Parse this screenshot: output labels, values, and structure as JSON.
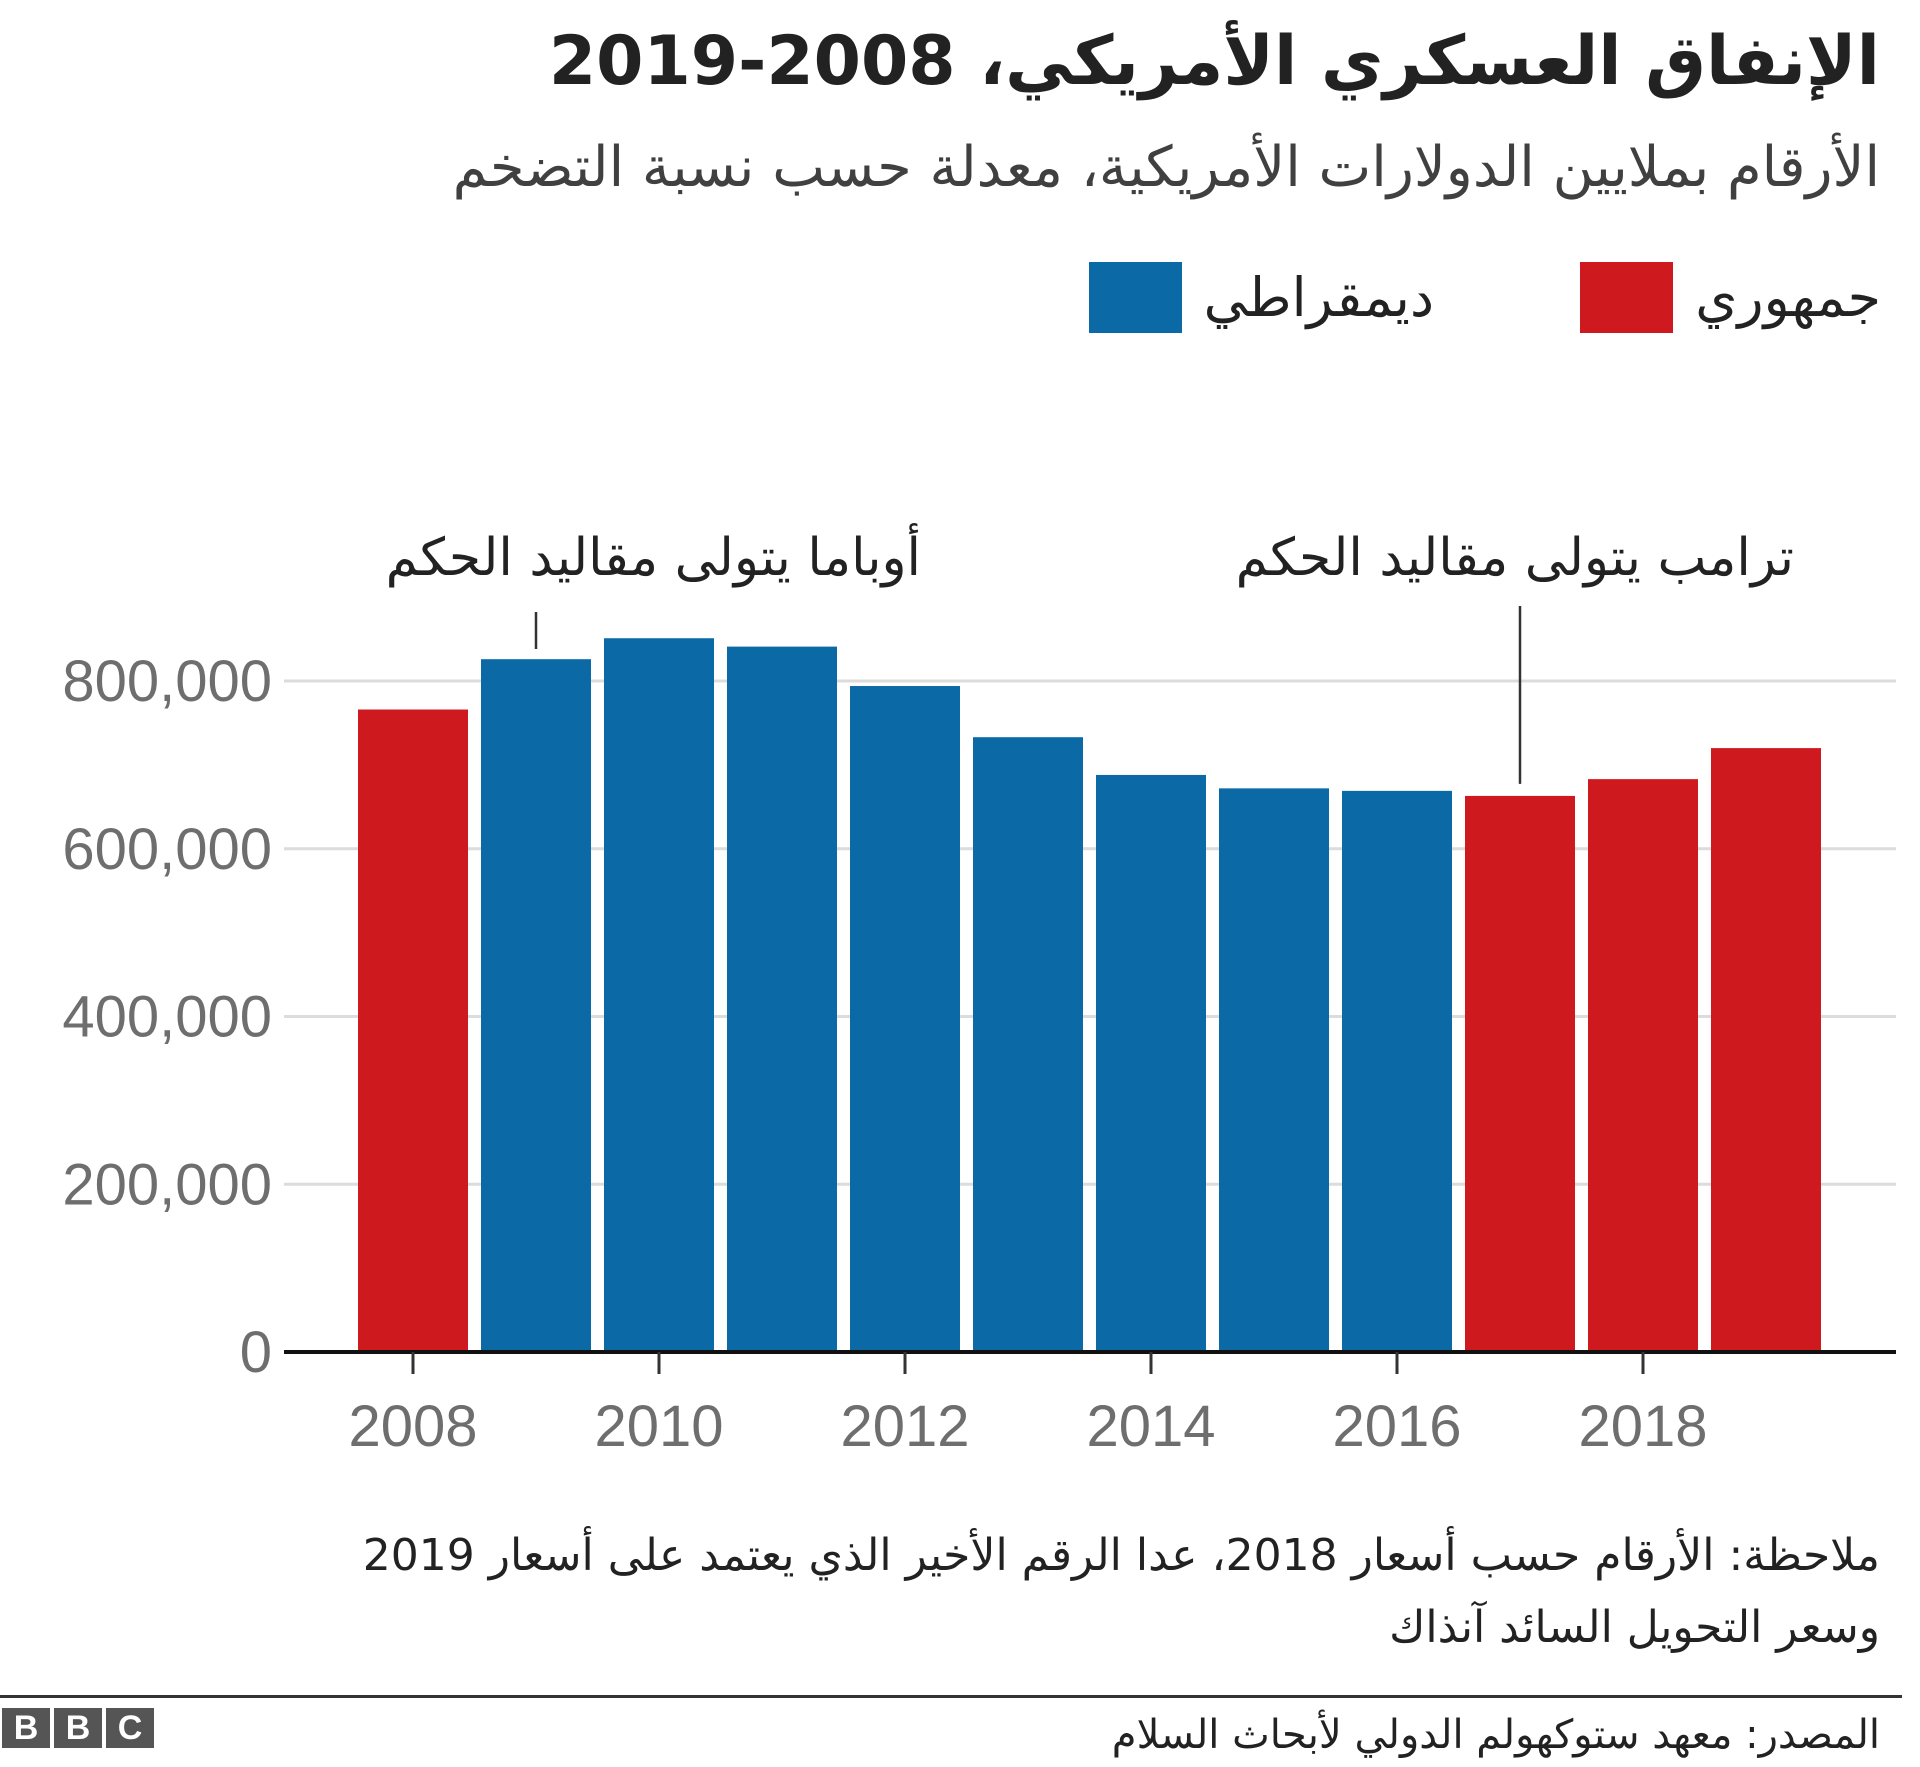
{
  "title": "الإنفاق العسكري الأمريكي، 2008-2019",
  "subtitle": "الأرقام بملايين الدولارات الأمريكية، معدلة حسب نسبة التضخم",
  "legend": [
    {
      "label": "جمهوري",
      "color": "#ce1a1e"
    },
    {
      "label": "ديمقراطي",
      "color": "#0b6aa6"
    }
  ],
  "note": "ملاحظة: الأرقام حسب أسعار 2018، عدا الرقم الأخير الذي يعتمد على أسعار 2019 وسعر التحويل السائد آنذاك",
  "source": "المصدر: معهد ستوكهولم الدولي لأبحاث السلام",
  "logo": "BBC",
  "chart_data": {
    "type": "bar",
    "categories": [
      "2008",
      "2009",
      "2010",
      "2011",
      "2012",
      "2013",
      "2014",
      "2015",
      "2016",
      "2017",
      "2018",
      "2019"
    ],
    "values": [
      766000,
      826000,
      851000,
      841000,
      794000,
      733000,
      688000,
      672000,
      669000,
      663000,
      683000,
      720000
    ],
    "party": [
      "جمهوري",
      "ديمقراطي",
      "ديمقراطي",
      "ديمقراطي",
      "ديمقراطي",
      "ديمقراطي",
      "ديمقراطي",
      "ديمقراطي",
      "ديمقراطي",
      "جمهوري",
      "جمهوري",
      "جمهوري"
    ],
    "ylim": [
      0,
      800000
    ],
    "yticks": [
      "0",
      "200,000",
      "400,000",
      "600,000",
      "800,000"
    ],
    "xticks": [
      "2008",
      "2010",
      "2012",
      "2014",
      "2016",
      "2018"
    ],
    "grid": true,
    "legend_position": "top-right",
    "annotations": [
      {
        "text": "أوباما يتولى مقاليد الحكم",
        "year": "2009"
      },
      {
        "text": "ترامب يتولى مقاليد الحكم",
        "year": "2017"
      }
    ]
  }
}
